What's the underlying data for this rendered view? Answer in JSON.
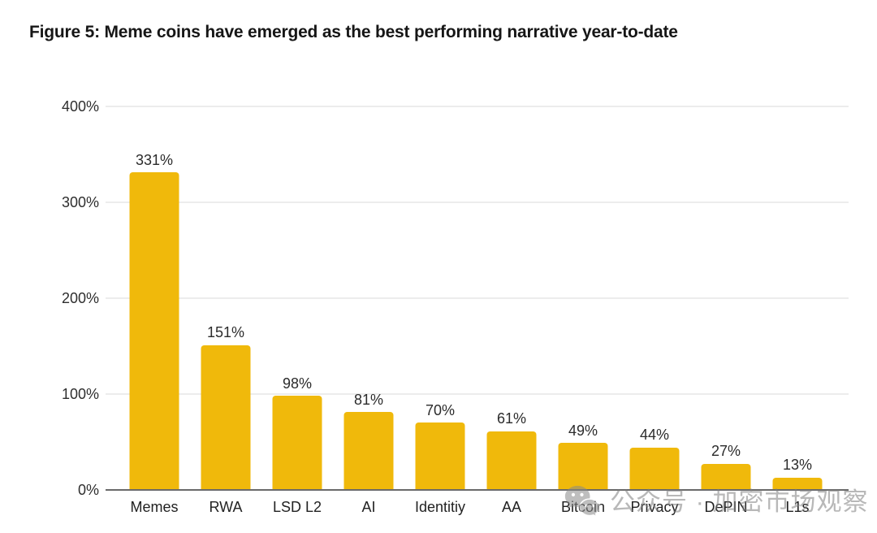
{
  "title": "Figure 5: Meme coins have emerged as the best performing narrative year-to-date",
  "watermark": {
    "text": "公众号 · 加密市场观察",
    "icon": "wechat-icon"
  },
  "colors": {
    "bar": "#F0B90B",
    "title_text": "#161616",
    "axis_text": "#2e2e2e",
    "gridline": "#d8d8d8",
    "baseline": "#6a6a6a",
    "watermark": "#7f7f7f",
    "background": "#ffffff"
  },
  "chart_data": {
    "type": "bar",
    "title": "Figure 5: Meme coins have emerged as the best performing narrative year-to-date",
    "categories": [
      "Memes",
      "RWA",
      "LSD L2",
      "AI",
      "Identitiy",
      "AA",
      "Bitcoin",
      "Privacy",
      "DePIN",
      "L1s"
    ],
    "values": [
      331,
      151,
      98,
      81,
      70,
      61,
      49,
      44,
      27,
      13
    ],
    "value_labels": [
      "331%",
      "151%",
      "98%",
      "81%",
      "70%",
      "61%",
      "49%",
      "44%",
      "27%",
      "13%"
    ],
    "xlabel": "",
    "ylabel": "",
    "ylim": [
      0,
      400
    ],
    "yticks": [
      0,
      100,
      200,
      300,
      400
    ],
    "ytick_labels": [
      "0%",
      "100%",
      "200%",
      "300%",
      "400%"
    ],
    "grid": true,
    "legend": false,
    "bar_color": "#F0B90B"
  }
}
